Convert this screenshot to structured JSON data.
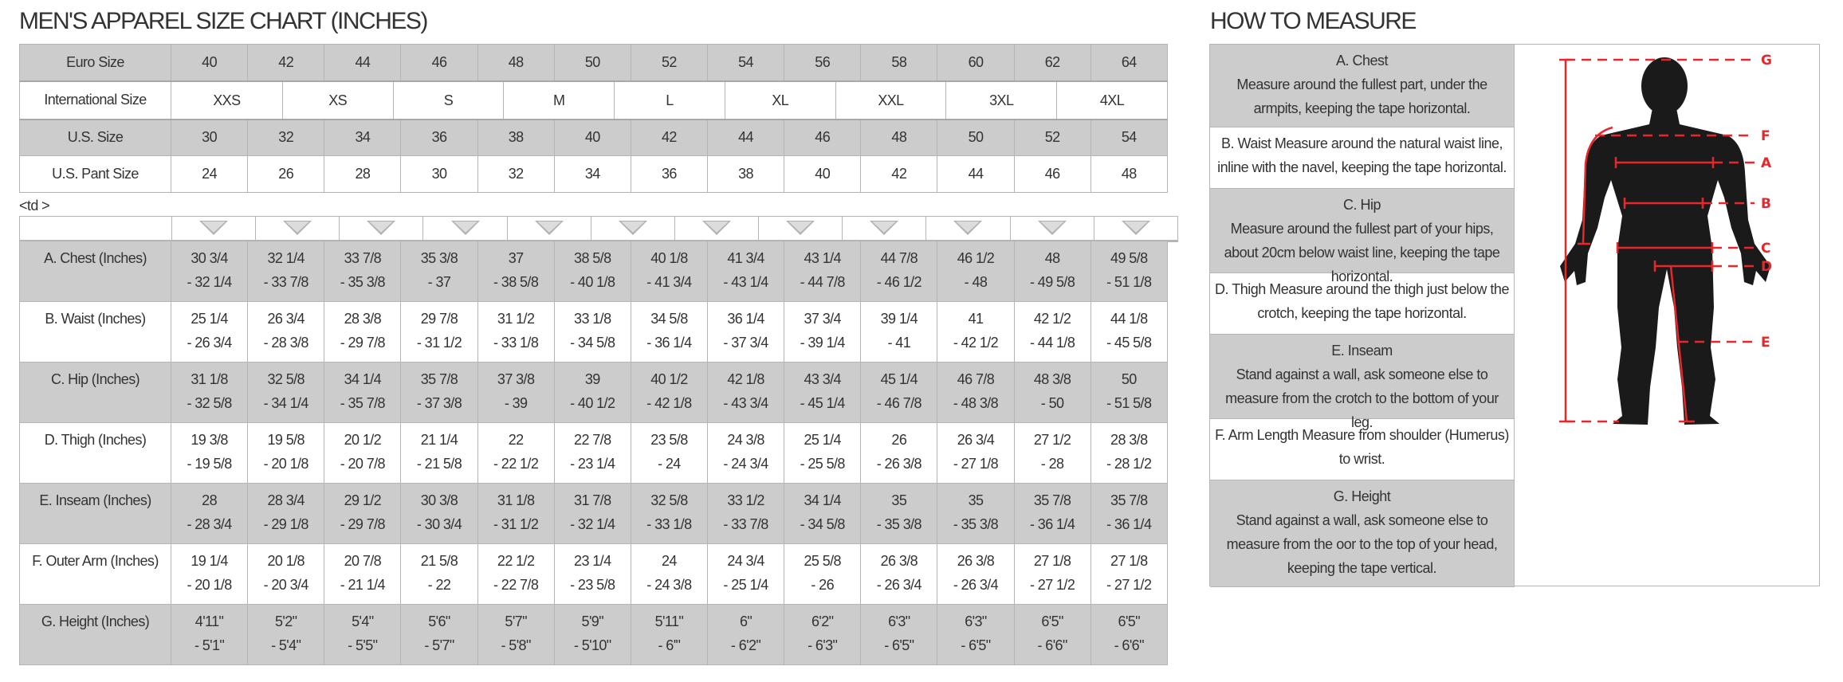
{
  "size_chart": {
    "title": "MEN'S APPAREL SIZE CHART (INCHES)",
    "euro": {
      "label": "Euro Size",
      "values": [
        "40",
        "42",
        "44",
        "46",
        "48",
        "50",
        "52",
        "54",
        "56",
        "58",
        "60",
        "62",
        "64"
      ]
    },
    "international": {
      "label": "International Size",
      "values": [
        "XXS",
        "XS",
        "S",
        "M",
        "L",
        "XL",
        "XXL",
        "3XL",
        "4XL"
      ]
    },
    "us": {
      "label": "U.S. Size",
      "values": [
        "30",
        "32",
        "34",
        "36",
        "38",
        "40",
        "42",
        "44",
        "46",
        "48",
        "50",
        "52",
        "54"
      ]
    },
    "us_pant": {
      "label": "U.S. Pant Size",
      "values": [
        "24",
        "26",
        "28",
        "30",
        "32",
        "34",
        "36",
        "38",
        "40",
        "42",
        "44",
        "46",
        "48"
      ]
    },
    "stray_text": "<td >",
    "arrow_icon": "triangle-down-icon",
    "arrow_count": 12,
    "measurements": [
      {
        "label": "A. Chest (Inches)",
        "values": [
          [
            "30 3/4",
            "- 32 1/4"
          ],
          [
            "32 1/4",
            "- 33 7/8"
          ],
          [
            "33 7/8",
            "- 35 3/8"
          ],
          [
            "35 3/8",
            "- 37"
          ],
          [
            "37",
            "- 38 5/8"
          ],
          [
            "38 5/8",
            "- 40 1/8"
          ],
          [
            "40 1/8",
            "- 41 3/4"
          ],
          [
            "41 3/4",
            "- 43 1/4"
          ],
          [
            "43 1/4",
            "- 44 7/8"
          ],
          [
            "44 7/8",
            "- 46 1/2"
          ],
          [
            "46 1/2",
            "- 48"
          ],
          [
            "48",
            "- 49 5/8"
          ],
          [
            "49 5/8",
            "- 51 1/8"
          ]
        ]
      },
      {
        "label": "B. Waist (Inches)",
        "values": [
          [
            "25 1/4",
            "- 26 3/4"
          ],
          [
            "26 3/4",
            "- 28 3/8"
          ],
          [
            "28 3/8",
            "- 29 7/8"
          ],
          [
            "29 7/8",
            "- 31 1/2"
          ],
          [
            "31 1/2",
            "- 33 1/8"
          ],
          [
            "33 1/8",
            "- 34 5/8"
          ],
          [
            "34 5/8",
            "- 36 1/4"
          ],
          [
            "36 1/4",
            "- 37 3/4"
          ],
          [
            "37 3/4",
            "- 39 1/4"
          ],
          [
            "39 1/4",
            "- 41"
          ],
          [
            "41",
            "- 42 1/2"
          ],
          [
            "42 1/2",
            "- 44 1/8"
          ],
          [
            "44 1/8",
            "- 45 5/8"
          ]
        ]
      },
      {
        "label": "C. Hip (Inches)",
        "values": [
          [
            "31 1/8",
            "- 32 5/8"
          ],
          [
            "32 5/8",
            "- 34 1/4"
          ],
          [
            "34 1/4",
            "- 35 7/8"
          ],
          [
            "35 7/8",
            "- 37 3/8"
          ],
          [
            "37 3/8",
            "- 39"
          ],
          [
            "39",
            "- 40 1/2"
          ],
          [
            "40 1/2",
            "- 42 1/8"
          ],
          [
            "42 1/8",
            "- 43 3/4"
          ],
          [
            "43 3/4",
            "- 45 1/4"
          ],
          [
            "45 1/4",
            "- 46 7/8"
          ],
          [
            "46 7/8",
            "- 48 3/8"
          ],
          [
            "48 3/8",
            "- 50"
          ],
          [
            "50",
            "- 51 5/8"
          ]
        ]
      },
      {
        "label": "D. Thigh (Inches)",
        "values": [
          [
            "19 3/8",
            "- 19 5/8"
          ],
          [
            "19 5/8",
            "- 20 1/8"
          ],
          [
            "20 1/2",
            "- 20 7/8"
          ],
          [
            "21 1/4",
            "- 21 5/8"
          ],
          [
            "22",
            "- 22 1/2"
          ],
          [
            "22 7/8",
            "- 23 1/4"
          ],
          [
            "23 5/8",
            "- 24"
          ],
          [
            "24 3/8",
            "- 24 3/4"
          ],
          [
            "25 1/4",
            "- 25 5/8"
          ],
          [
            "26",
            "- 26 3/8"
          ],
          [
            "26 3/4",
            "- 27 1/8"
          ],
          [
            "27 1/2",
            "- 28"
          ],
          [
            "28 3/8",
            "- 28 1/2"
          ]
        ]
      },
      {
        "label": "E. Inseam (Inches)",
        "values": [
          [
            "28",
            "- 28 3/4"
          ],
          [
            "28 3/4",
            "- 29 1/8"
          ],
          [
            "29 1/2",
            "- 29 7/8"
          ],
          [
            "30 3/8",
            "- 30 3/4"
          ],
          [
            "31 1/8",
            "- 31 1/2"
          ],
          [
            "31 7/8",
            "- 32 1/4"
          ],
          [
            "32 5/8",
            "- 33 1/8"
          ],
          [
            "33 1/2",
            "- 33 7/8"
          ],
          [
            "34 1/4",
            "- 34 5/8"
          ],
          [
            "35",
            "- 35 3/8"
          ],
          [
            "35",
            "- 35 3/8"
          ],
          [
            "35 7/8",
            "- 36 1/4"
          ],
          [
            "35 7/8",
            "- 36 1/4"
          ]
        ]
      },
      {
        "label": "F. Outer Arm (Inches)",
        "values": [
          [
            "19 1/4",
            "- 20 1/8"
          ],
          [
            "20 1/8",
            "- 20 3/4"
          ],
          [
            "20 7/8",
            "- 21 1/4"
          ],
          [
            "21 5/8",
            "- 22"
          ],
          [
            "22 1/2",
            "- 22 7/8"
          ],
          [
            "23 1/4",
            "- 23 5/8"
          ],
          [
            "24",
            "- 24 3/8"
          ],
          [
            "24 3/4",
            "- 25 1/4"
          ],
          [
            "25 5/8",
            "- 26"
          ],
          [
            "26 3/8",
            "- 26 3/4"
          ],
          [
            "26 3/8",
            "- 26 3/4"
          ],
          [
            "27 1/8",
            "- 27 1/2"
          ],
          [
            "27 1/8",
            "- 27 1/2"
          ]
        ]
      },
      {
        "label": "G. Height (Inches)",
        "values": [
          [
            "4'11\"",
            "- 5'1\""
          ],
          [
            "5'2\"",
            "- 5'4\""
          ],
          [
            "5'4\"",
            "- 5'5\""
          ],
          [
            "5'6\"",
            "- 5'7\""
          ],
          [
            "5'7\"",
            "- 5'8\""
          ],
          [
            "5'9\"",
            "- 5'10\""
          ],
          [
            "5'11\"",
            "- 6'\""
          ],
          [
            "6\"",
            "- 6'2\""
          ],
          [
            "6'2\"",
            "- 6'3\""
          ],
          [
            "6'3\"",
            "- 6'5\""
          ],
          [
            "6'3\"",
            "- 6'5\""
          ],
          [
            "6'5\"",
            "- 6'6\""
          ],
          [
            "6'5\"",
            "- 6'6\""
          ]
        ]
      }
    ]
  },
  "how_to_measure": {
    "title": "HOW TO MEASURE",
    "items": [
      {
        "heading": "A. Chest",
        "text": "Measure around the fullest part, under the armpits, keeping the tape horizontal."
      },
      {
        "heading": "",
        "text": "B. Waist Measure around the natural waist line, inline with the navel, keeping the tape horizontal."
      },
      {
        "heading": "C. Hip",
        "text": "Measure around the fullest part of your hips, about 20cm below waist line, keeping the tape horizontal."
      },
      {
        "heading": "",
        "text": "D. Thigh Measure around the thigh just below the crotch, keeping the tape horizontal."
      },
      {
        "heading": "E. Inseam",
        "text": "Stand against a wall, ask someone else to measure from the crotch to the bottom of your leg."
      },
      {
        "heading": "",
        "text": "F. Arm Length Measure from shoulder (Humerus) to wrist."
      },
      {
        "heading": "G. Height",
        "text": "Stand against a wall, ask someone else to measure from the oor to the top of your head, keeping the tape vertical."
      }
    ],
    "figure_labels": [
      "G",
      "F",
      "A",
      "B",
      "C",
      "D",
      "E"
    ],
    "colors": {
      "marker": "#e8262b",
      "silhouette": "#1a1a1a",
      "row_gray": "#cccccc"
    }
  }
}
